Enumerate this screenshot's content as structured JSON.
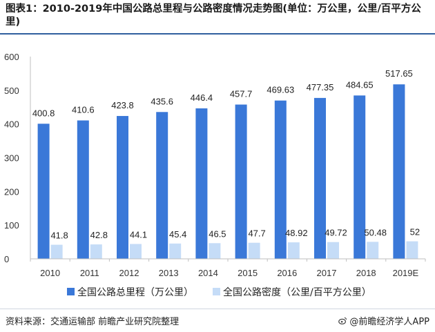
{
  "title": "图表1：2010-2019年中国公路总里程与公路密度情况走势图(单位：万公里，公里/百平方公里)",
  "source": "资料来源：交通运输部 前瞻产业研究院整理",
  "brand": "@前瞻经济学人APP",
  "colors": {
    "series1": "#3a78d8",
    "series2": "#c5dcf7",
    "title_rule": "#2f5e9e"
  },
  "chart_data": {
    "type": "bar",
    "categories": [
      "2010",
      "2011",
      "2012",
      "2013",
      "2014",
      "2015",
      "2016",
      "2017",
      "2018",
      "2019E"
    ],
    "series": [
      {
        "name": "全国公路总里程（万公里）",
        "values": [
          400.8,
          410.6,
          423.8,
          435.6,
          446.4,
          457.7,
          469.63,
          477.35,
          484.65,
          517.65
        ],
        "labels": [
          "400.8",
          "410.6",
          "423.8",
          "435.6",
          "446.4",
          "457.7",
          "469.63",
          "477.35",
          "484.65",
          "517.65"
        ]
      },
      {
        "name": "全国公路密度（公里/百平方公里）",
        "values": [
          41.8,
          42.8,
          44.1,
          45.4,
          46.5,
          47.7,
          48.92,
          49.72,
          50.48,
          52
        ],
        "labels": [
          "41.8",
          "42.8",
          "44.1",
          "45.4",
          "46.5",
          "47.7",
          "48.92",
          "49.72",
          "50.48",
          "52"
        ]
      }
    ],
    "ylim": [
      0,
      600
    ],
    "yticks": [
      "0",
      "100",
      "200",
      "300",
      "400",
      "500",
      "600"
    ],
    "legend_position": "bottom",
    "grid": false
  }
}
